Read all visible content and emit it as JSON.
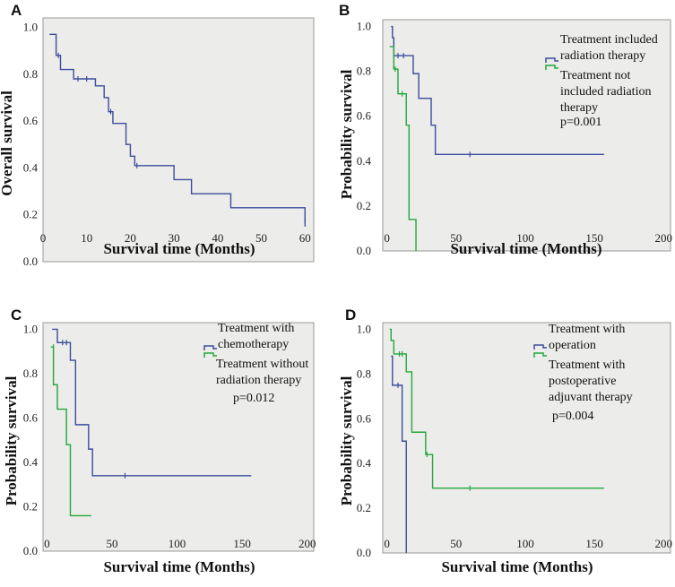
{
  "colors": {
    "blue": "#3b4d9c",
    "green": "#22a83a"
  },
  "chart_data": [
    {
      "id": "A",
      "type": "line",
      "panel_label": "A",
      "xlabel": "Survival time (Months)",
      "ylabel": "Overall  survival",
      "xlim": [
        0,
        62
      ],
      "ylim": [
        0,
        1.04
      ],
      "xticks": [
        0,
        10,
        20,
        30,
        40,
        50,
        60
      ],
      "yticks": [
        0.0,
        0.2,
        0.4,
        0.6,
        0.8,
        1.0
      ],
      "yticklabels": [
        "0.0",
        "0.2",
        "0.4",
        "0.6",
        "0.8",
        "1.0"
      ],
      "legend": [],
      "series": [
        {
          "name": "Overall",
          "color": "blue",
          "steps": [
            [
              1.5,
              0.97
            ],
            [
              3,
              0.88
            ],
            [
              4,
              0.82
            ],
            [
              7,
              0.78
            ],
            [
              12,
              0.75
            ],
            [
              14,
              0.7
            ],
            [
              15,
              0.64
            ],
            [
              16,
              0.59
            ],
            [
              19,
              0.5
            ],
            [
              20,
              0.45
            ],
            [
              21,
              0.41
            ],
            [
              30,
              0.35
            ],
            [
              34,
              0.29
            ],
            [
              43,
              0.23
            ],
            [
              60,
              0.15
            ]
          ],
          "end_x": 60,
          "censors": [
            [
              3.5,
              0.88
            ],
            [
              8,
              0.78
            ],
            [
              10,
              0.78
            ],
            [
              15.5,
              0.64
            ],
            [
              21.5,
              0.41
            ],
            [
              60,
              0.18
            ]
          ]
        }
      ]
    },
    {
      "id": "B",
      "type": "line",
      "panel_label": "B",
      "xlabel": "Survival time (Months)",
      "ylabel": "Probability survival",
      "xlim": [
        -3,
        205
      ],
      "ylim": [
        0,
        1.03
      ],
      "xticks": [
        0,
        50,
        100,
        150,
        200
      ],
      "yticks": [
        0.0,
        0.2,
        0.4,
        0.6,
        0.8,
        1.0
      ],
      "yticklabels": [
        "0.0",
        "0.2",
        "0.4",
        "0.6",
        "0.8",
        "1.0"
      ],
      "legend": [
        {
          "text": [
            "Treatment included",
            "radiation therapy"
          ],
          "color": "blue"
        },
        {
          "text": [
            "Treatment not",
            "included  radiation",
            "therapy"
          ],
          "color": "green"
        }
      ],
      "p_value": "p=0.001",
      "series": [
        {
          "name": "Treatment included radiation therapy",
          "color": "blue",
          "steps": [
            [
              3,
              1.0
            ],
            [
              4,
              0.95
            ],
            [
              5,
              0.87
            ],
            [
              19,
              0.79
            ],
            [
              23,
              0.68
            ],
            [
              32,
              0.56
            ],
            [
              35,
              0.43
            ]
          ],
          "end_x": 157,
          "censors": [
            [
              8,
              0.87
            ],
            [
              12,
              0.87
            ],
            [
              60,
              0.43
            ]
          ]
        },
        {
          "name": "Treatment not included radiation therapy",
          "color": "green",
          "steps": [
            [
              2,
              0.91
            ],
            [
              5,
              0.81
            ],
            [
              8,
              0.7
            ],
            [
              14,
              0.56
            ],
            [
              16,
              0.14
            ],
            [
              21,
              0.0
            ]
          ],
          "end_x": 21,
          "censors": [
            [
              6,
              0.81
            ],
            [
              11,
              0.7
            ]
          ]
        }
      ]
    },
    {
      "id": "C",
      "type": "line",
      "panel_label": "C",
      "xlabel": "Survival time (Months)",
      "ylabel": "Probability survival",
      "xlim": [
        -3,
        205
      ],
      "ylim": [
        0,
        1.03
      ],
      "xticks": [
        0,
        50,
        100,
        150,
        200
      ],
      "yticks": [
        0.0,
        0.2,
        0.4,
        0.6,
        0.8,
        1.0
      ],
      "yticklabels": [
        "0.0",
        "0.2",
        "0.4",
        "0.6",
        "0.8",
        "1.0"
      ],
      "legend": [
        {
          "text": [
            "Treatment with",
            "chemotherapy"
          ],
          "color": "blue"
        },
        {
          "text": [
            "Treatment without",
            "radiation therapy"
          ],
          "color": "green"
        }
      ],
      "p_value": "p=0.012",
      "series": [
        {
          "name": "Treatment with chemotherapy",
          "color": "blue",
          "steps": [
            [
              4,
              1.0
            ],
            [
              8,
              0.94
            ],
            [
              18,
              0.86
            ],
            [
              22,
              0.57
            ],
            [
              32,
              0.46
            ],
            [
              35,
              0.34
            ]
          ],
          "end_x": 157,
          "censors": [
            [
              12,
              0.94
            ],
            [
              15,
              0.94
            ],
            [
              60,
              0.34
            ]
          ]
        },
        {
          "name": "Treatment without radiation therapy",
          "color": "green",
          "steps": [
            [
              3,
              0.92
            ],
            [
              5,
              0.75
            ],
            [
              8,
              0.64
            ],
            [
              15,
              0.48
            ],
            [
              18,
              0.16
            ]
          ],
          "end_x": 34,
          "censors": [
            [
              5,
              0.92
            ]
          ]
        }
      ]
    },
    {
      "id": "D",
      "type": "line",
      "panel_label": "D",
      "xlabel": "Survival time (Months)",
      "ylabel": "Probability survival",
      "xlim": [
        -3,
        205
      ],
      "ylim": [
        0,
        1.03
      ],
      "xticks": [
        0,
        50,
        100,
        150,
        200
      ],
      "yticks": [
        0.0,
        0.2,
        0.4,
        0.6,
        0.8,
        1.0
      ],
      "yticklabels": [
        "0.0",
        "0.2",
        "0.4",
        "0.6",
        "0.8",
        "1.0"
      ],
      "legend": [
        {
          "text": [
            "Treatment with",
            "operation"
          ],
          "color": "blue"
        },
        {
          "text": [
            "Treatment with",
            "postoperative",
            "adjuvant therapy"
          ],
          "color": "green"
        }
      ],
      "p_value": "p=0.004",
      "series": [
        {
          "name": "Treatment with operation",
          "color": "blue",
          "steps": [
            [
              3,
              0.88
            ],
            [
              4,
              0.75
            ],
            [
              11,
              0.5
            ],
            [
              14,
              0.0
            ]
          ],
          "end_x": 14,
          "censors": [
            [
              8,
              0.75
            ]
          ]
        },
        {
          "name": "Treatment with postoperative adjuvant therapy",
          "color": "green",
          "steps": [
            [
              2,
              1.0
            ],
            [
              3,
              0.95
            ],
            [
              5,
              0.89
            ],
            [
              14,
              0.81
            ],
            [
              18,
              0.54
            ],
            [
              28,
              0.44
            ],
            [
              33,
              0.29
            ]
          ],
          "end_x": 157,
          "censors": [
            [
              9,
              0.89
            ],
            [
              11,
              0.89
            ],
            [
              29,
              0.44
            ],
            [
              60,
              0.29
            ]
          ]
        }
      ]
    }
  ]
}
